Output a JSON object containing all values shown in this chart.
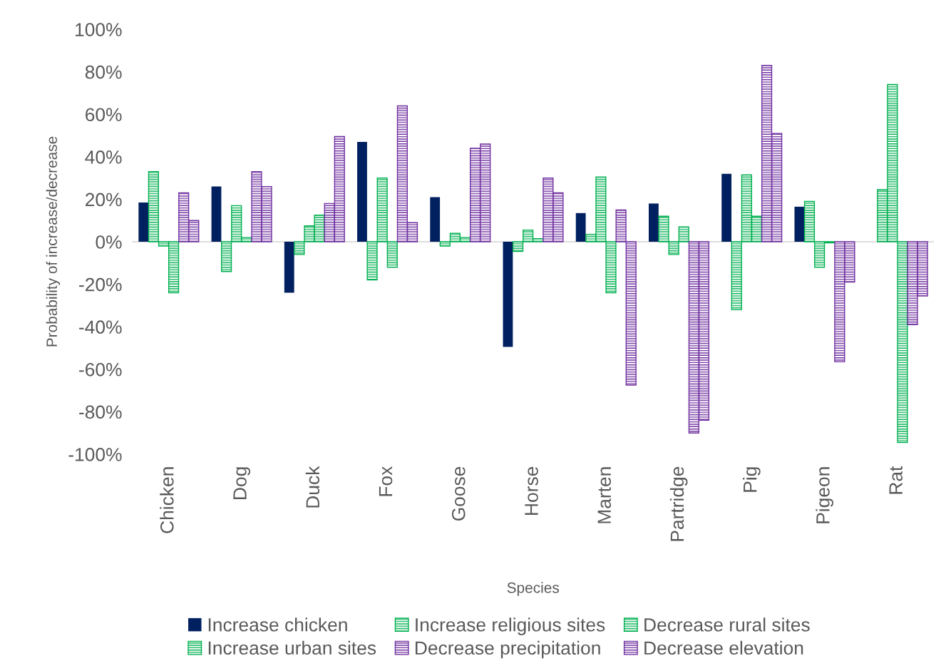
{
  "chart_data": {
    "type": "bar",
    "xlabel": "Species",
    "ylabel": "Probability of increase/decrease",
    "categories": [
      "Chicken",
      "Dog",
      "Duck",
      "Fox",
      "Goose",
      "Horse",
      "Marten",
      "Partridge",
      "Pig",
      "Pigeon",
      "Rat"
    ],
    "series": [
      {
        "name": "Increase chicken",
        "color": "#002060",
        "values": [
          18.5,
          26,
          -24,
          47,
          21,
          -49.5,
          13.5,
          18,
          32,
          16.5,
          0
        ]
      },
      {
        "name": "Increase religious sites",
        "color": "#00b050",
        "values": [
          33,
          -14,
          -6,
          -18,
          -2,
          -4.5,
          3.5,
          12,
          -32,
          19,
          24.5
        ]
      },
      {
        "name": "Decrease rural sites",
        "color": "#00b050",
        "values": [
          -2,
          17,
          7.5,
          30,
          4,
          5.5,
          30.5,
          -6,
          31.5,
          -12,
          74
        ]
      },
      {
        "name": "Increase urban sites",
        "color": "#00b050",
        "values": [
          -24,
          2,
          12.5,
          -12,
          2,
          1.5,
          -24,
          7,
          12,
          -0.5,
          -94.5
        ]
      },
      {
        "name": "Decrease precipitation",
        "color": "#7030a0",
        "values": [
          23,
          33,
          18,
          64,
          44,
          30,
          15,
          -90,
          83,
          -56.5,
          -39
        ]
      },
      {
        "name": "Decrease elevation",
        "color": "#7030a0",
        "values": [
          10,
          26,
          49.5,
          9,
          46,
          23,
          -67.5,
          -84,
          51,
          -19,
          -25.5
        ]
      }
    ],
    "ylim": [
      -100,
      100
    ],
    "yticks": [
      {
        "value": -100,
        "label": "-100%"
      },
      {
        "value": -80,
        "label": "-80%"
      },
      {
        "value": -60,
        "label": "-60%"
      },
      {
        "value": -40,
        "label": "-40%"
      },
      {
        "value": -20,
        "label": "-20%"
      },
      {
        "value": 0,
        "label": "0%"
      },
      {
        "value": 20,
        "label": "20%"
      },
      {
        "value": 40,
        "label": "40%"
      },
      {
        "value": 60,
        "label": "60%"
      },
      {
        "value": 80,
        "label": "80%"
      },
      {
        "value": 100,
        "label": "100%"
      }
    ],
    "legend": "bottom"
  }
}
